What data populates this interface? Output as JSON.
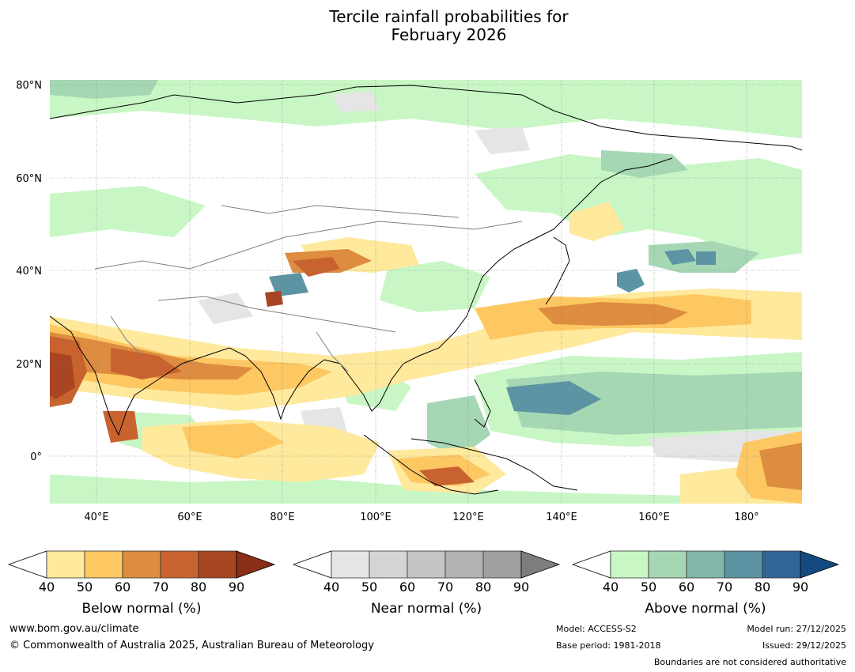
{
  "title_line1": "Tercile rainfall probabilities for",
  "title_line2": "February 2026",
  "map": {
    "lat_labels": [
      "80°N",
      "60°N",
      "40°N",
      "20°N",
      "0°"
    ],
    "lon_labels": [
      "40°E",
      "60°E",
      "80°E",
      "100°E",
      "120°E",
      "140°E",
      "160°E",
      "180°"
    ]
  },
  "colorbars": [
    {
      "label": "Below normal (%)",
      "ticks": [
        "40",
        "50",
        "60",
        "70",
        "80",
        "90"
      ],
      "colors": [
        "#ffffff",
        "#fee99d",
        "#fdc862",
        "#dd8c40",
        "#c8632f",
        "#a84522",
        "#8a2e17"
      ]
    },
    {
      "label": "Near normal (%)",
      "ticks": [
        "40",
        "50",
        "60",
        "70",
        "80",
        "90"
      ],
      "colors": [
        "#ffffff",
        "#e5e5e5",
        "#d5d5d5",
        "#c5c5c5",
        "#b2b2b2",
        "#a0a0a0",
        "#7d7d7d"
      ]
    },
    {
      "label": "Above normal (%)",
      "ticks": [
        "40",
        "50",
        "60",
        "70",
        "80",
        "90"
      ],
      "colors": [
        "#ffffff",
        "#c8f7c5",
        "#a6d7b4",
        "#85b6ab",
        "#5c94a3",
        "#2f6597",
        "#134a82"
      ]
    }
  ],
  "footer": {
    "website": "www.bom.gov.au/climate",
    "copyright": "© Commonwealth of Australia 2025, Australian Bureau of Meteorology",
    "model": "Model: ACCESS-S2",
    "base_period": "Base period: 1981-2018",
    "model_run": "Model run: 27/12/2025",
    "issued": "Issued: 29/12/2025",
    "disclaimer": "Boundaries are not considered authoritative"
  }
}
